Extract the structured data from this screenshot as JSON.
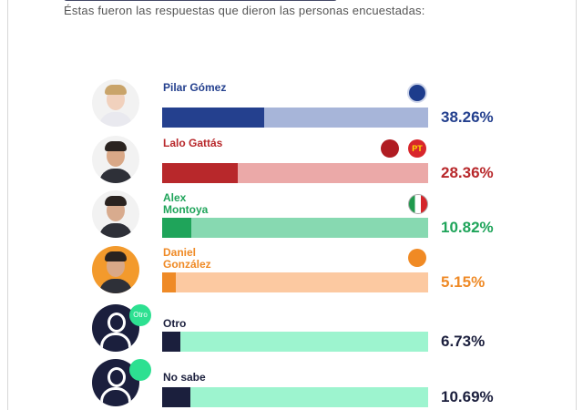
{
  "chart_data": {
    "type": "bar",
    "orientation": "horizontal",
    "subtitle": "Éstas fueron las respuestas que dieron las personas encuestadas:",
    "categories": [
      "Pilar Gómez",
      "Lalo Gattás",
      "Alex Montoya",
      "Daniel González",
      "Otro",
      "No sabe"
    ],
    "values": [
      38.26,
      28.36,
      10.82,
      5.15,
      6.73,
      10.69
    ],
    "value_labels": [
      "38.26%",
      "28.36%",
      "10.82%",
      "5.15%",
      "6.73%",
      "10.69%"
    ],
    "colors": [
      "#24408e",
      "#b8282b",
      "#1fa45a",
      "#ef8a26",
      "#1b1f3d",
      "#1b1f3d"
    ],
    "track_colors": [
      "#a7b5d9",
      "#eba9a8",
      "#87d9b1",
      "#fcc9a1",
      "#9df4cf",
      "#9df4cf"
    ],
    "badge": "Otro",
    "logo_text": "PT",
    "xlim": [
      0,
      100
    ]
  }
}
